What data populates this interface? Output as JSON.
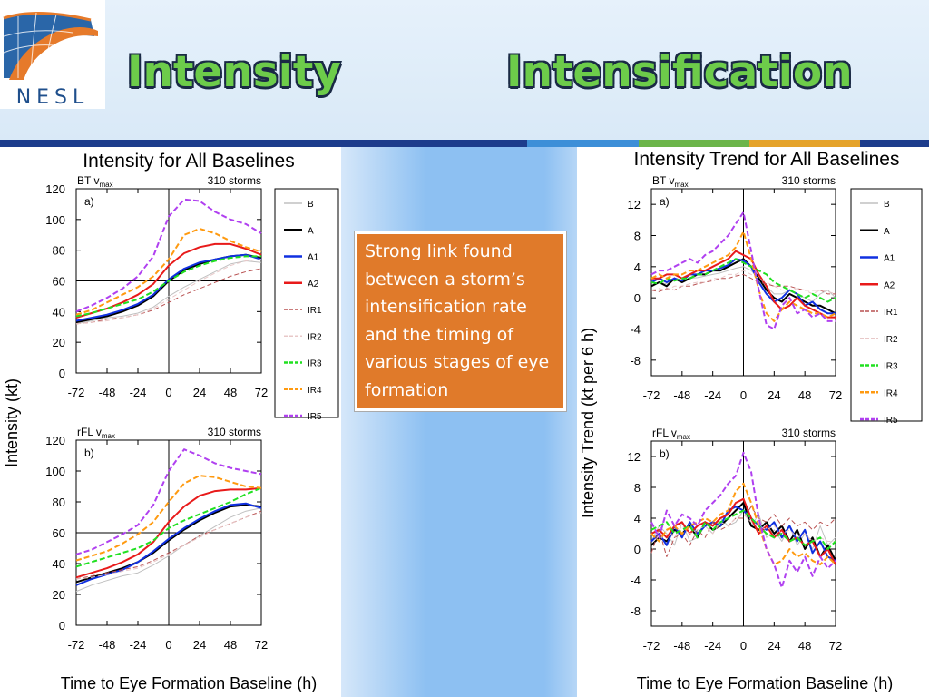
{
  "slide": {
    "logo_text": "NESL",
    "title_left": "Intensity",
    "title_right": "Intensification",
    "callout": "Strong link found between a storm’s intensification rate and the timing of various stages of eye formation",
    "colors": {
      "title": "#6dcc4a",
      "callout_bg": "#e07a2a",
      "bar": "#1d3c8c"
    }
  },
  "figures": {
    "left": {
      "title": "Intensity for All Baselines",
      "ylabel": "Intensity (kt)",
      "xlabel": "Time to Eye Formation Baseline (h)"
    },
    "right": {
      "title": "Intensity Trend for All Baselines",
      "ylabel": "Intensity Trend (kt per 6 h)",
      "xlabel": "Time to Eye Formation Baseline (h)"
    }
  },
  "legend": [
    {
      "name": "B",
      "color": "#c0c0c0",
      "dash": "",
      "width": 1
    },
    {
      "name": "A",
      "color": "#000000",
      "dash": "",
      "width": 2
    },
    {
      "name": "A1",
      "color": "#1030e0",
      "dash": "",
      "width": 2
    },
    {
      "name": "A2",
      "color": "#e81a1a",
      "dash": "",
      "width": 2
    },
    {
      "name": "IR1",
      "color": "#b85050",
      "dash": "5,3",
      "width": 1
    },
    {
      "name": "IR2",
      "color": "#e8c8c8",
      "dash": "5,3",
      "width": 1
    },
    {
      "name": "IR3",
      "color": "#20e020",
      "dash": "6,3",
      "width": 2
    },
    {
      "name": "IR4",
      "color": "#ff9a10",
      "dash": "6,3",
      "width": 2
    },
    {
      "name": "IR5",
      "color": "#b040f0",
      "dash": "6,3",
      "width": 2
    }
  ],
  "chart_data": [
    {
      "type": "line",
      "panel_label": "a)",
      "title": "Intensity for All Baselines",
      "subtitle_left": "BT v",
      "subtitle_sub": "max",
      "subtitle_right": "310 storms",
      "xlabel": "Time to Eye Formation Baseline (h)",
      "ylabel": "Intensity (kt)",
      "xlim": [
        -72,
        72
      ],
      "ylim": [
        0,
        120
      ],
      "xticks": [
        -72,
        -48,
        -24,
        0,
        24,
        48,
        72
      ],
      "yticks": [
        0,
        20,
        40,
        60,
        80,
        100,
        120
      ],
      "hline": 60,
      "vline": 0,
      "x": [
        -72,
        -60,
        -48,
        -36,
        -24,
        -12,
        0,
        12,
        24,
        36,
        48,
        60,
        72
      ],
      "series": [
        {
          "name": "B",
          "values": [
            32,
            34,
            36,
            37,
            39,
            43,
            50,
            56,
            61,
            66,
            71,
            73,
            72
          ]
        },
        {
          "name": "A",
          "values": [
            33,
            35,
            37,
            40,
            44,
            50,
            60,
            67,
            71,
            74,
            76,
            77,
            75
          ]
        },
        {
          "name": "A1",
          "values": [
            34,
            36,
            38,
            41,
            45,
            51,
            61,
            68,
            72,
            74,
            76,
            77,
            74
          ]
        },
        {
          "name": "A2",
          "values": [
            36,
            39,
            42,
            46,
            51,
            58,
            70,
            78,
            82,
            84,
            84,
            81,
            77
          ]
        },
        {
          "name": "IR1",
          "values": [
            32,
            33,
            35,
            36,
            38,
            41,
            46,
            51,
            55,
            59,
            63,
            66,
            68
          ]
        },
        {
          "name": "IR2",
          "values": [
            32,
            33,
            34,
            36,
            38,
            42,
            48,
            54,
            60,
            65,
            70,
            73,
            74
          ]
        },
        {
          "name": "IR3",
          "values": [
            37,
            39,
            42,
            45,
            48,
            53,
            60,
            66,
            70,
            73,
            75,
            76,
            76
          ]
        },
        {
          "name": "IR4",
          "values": [
            38,
            41,
            46,
            51,
            56,
            63,
            74,
            90,
            94,
            91,
            86,
            82,
            79
          ]
        },
        {
          "name": "IR5",
          "values": [
            40,
            44,
            49,
            55,
            63,
            76,
            102,
            113,
            112,
            105,
            100,
            97,
            91
          ]
        }
      ]
    },
    {
      "type": "line",
      "panel_label": "b)",
      "subtitle_left": "rFL v",
      "subtitle_sub": "max",
      "subtitle_right": "310 storms",
      "xlabel": "Time to Eye Formation Baseline (h)",
      "ylabel": "Intensity (kt)",
      "xlim": [
        -72,
        72
      ],
      "ylim": [
        0,
        120
      ],
      "xticks": [
        -72,
        -48,
        -24,
        0,
        24,
        48,
        72
      ],
      "yticks": [
        0,
        20,
        40,
        60,
        80,
        100,
        120
      ],
      "hline": 60,
      "vline": 0,
      "x": [
        -72,
        -60,
        -48,
        -36,
        -24,
        -12,
        0,
        12,
        24,
        36,
        48,
        60,
        72
      ],
      "series": [
        {
          "name": "B",
          "values": [
            22,
            26,
            29,
            32,
            34,
            39,
            45,
            52,
            58,
            64,
            70,
            74,
            76
          ]
        },
        {
          "name": "A",
          "values": [
            28,
            31,
            34,
            37,
            41,
            47,
            55,
            62,
            68,
            73,
            77,
            78,
            77
          ]
        },
        {
          "name": "A1",
          "values": [
            26,
            30,
            33,
            36,
            41,
            48,
            56,
            63,
            69,
            74,
            78,
            79,
            76
          ]
        },
        {
          "name": "A2",
          "values": [
            31,
            34,
            37,
            41,
            46,
            54,
            67,
            77,
            84,
            87,
            88,
            88,
            89
          ]
        },
        {
          "name": "IR1",
          "values": [
            30,
            32,
            34,
            36,
            38,
            42,
            47,
            52,
            58,
            62,
            66,
            70,
            74
          ]
        },
        {
          "name": "IR2",
          "values": [
            30,
            31,
            33,
            35,
            37,
            41,
            46,
            52,
            57,
            62,
            66,
            70,
            73
          ]
        },
        {
          "name": "IR3",
          "values": [
            38,
            41,
            44,
            47,
            50,
            55,
            63,
            68,
            72,
            76,
            80,
            85,
            89
          ]
        },
        {
          "name": "IR4",
          "values": [
            42,
            45,
            48,
            53,
            59,
            67,
            80,
            92,
            97,
            96,
            93,
            90,
            89
          ]
        },
        {
          "name": "IR5",
          "values": [
            46,
            49,
            54,
            59,
            65,
            78,
            100,
            114,
            110,
            105,
            102,
            100,
            98
          ]
        }
      ]
    },
    {
      "type": "line",
      "panel_label": "a)",
      "title": "Intensity Trend for All Baselines",
      "subtitle_left": "BT v",
      "subtitle_sub": "max",
      "subtitle_right": "310 storms",
      "xlabel": "Time to Eye Formation Baseline (h)",
      "ylabel": "Intensity Trend (kt per 6 h)",
      "xlim": [
        -72,
        72
      ],
      "ylim": [
        -10,
        14
      ],
      "xticks": [
        -72,
        -48,
        -24,
        0,
        24,
        48,
        72
      ],
      "yticks": [
        -8,
        -4,
        0,
        4,
        8,
        12
      ],
      "hline": null,
      "vline": 0,
      "x": [
        -72,
        -66,
        -60,
        -54,
        -48,
        -42,
        -36,
        -30,
        -24,
        -18,
        -12,
        -6,
        0,
        6,
        12,
        18,
        24,
        30,
        36,
        42,
        48,
        54,
        60,
        66,
        72
      ],
      "series": [
        {
          "name": "B",
          "values": [
            1.5,
            2.0,
            1.8,
            2.3,
            2.0,
            2.5,
            2.6,
            2.8,
            3.0,
            3.2,
            3.5,
            3.8,
            4.0,
            3.5,
            2.5,
            1.5,
            0.5,
            0.5,
            1.0,
            0.5,
            0.0,
            -0.5,
            0.5,
            1.0,
            0.0
          ]
        },
        {
          "name": "A",
          "values": [
            1.5,
            2.0,
            1.5,
            2.5,
            2.0,
            2.5,
            3.0,
            3.0,
            3.5,
            3.5,
            4.0,
            4.5,
            5.0,
            4.0,
            2.5,
            1.0,
            0.0,
            -0.5,
            0.5,
            0.0,
            -0.5,
            -1.0,
            -1.0,
            -1.5,
            -2.0
          ]
        },
        {
          "name": "A1",
          "values": [
            2.0,
            2.5,
            2.0,
            2.5,
            2.2,
            3.0,
            3.0,
            3.5,
            3.5,
            3.8,
            4.2,
            5.0,
            4.8,
            4.0,
            2.0,
            0.5,
            -0.5,
            0.0,
            1.0,
            0.5,
            -1.0,
            -0.5,
            -1.5,
            -2.0,
            -2.0
          ]
        },
        {
          "name": "A2",
          "values": [
            2.5,
            2.5,
            3.0,
            3.0,
            2.5,
            3.0,
            3.5,
            3.5,
            4.0,
            4.5,
            5.0,
            6.0,
            5.5,
            5.0,
            3.0,
            1.5,
            -0.5,
            -1.5,
            -1.0,
            0.0,
            -1.0,
            -1.5,
            -2.0,
            -2.5,
            -2.5
          ]
        },
        {
          "name": "IR1",
          "values": [
            1.0,
            0.8,
            1.2,
            1.0,
            1.5,
            1.5,
            1.8,
            2.0,
            2.2,
            2.5,
            2.5,
            2.8,
            3.0,
            2.5,
            2.0,
            1.8,
            1.5,
            1.5,
            1.5,
            1.2,
            1.0,
            1.0,
            1.0,
            0.5,
            0.5
          ]
        },
        {
          "name": "IR2",
          "values": [
            1.0,
            1.2,
            1.0,
            1.5,
            1.5,
            1.8,
            2.0,
            2.0,
            2.5,
            2.5,
            3.0,
            3.0,
            3.5,
            3.0,
            2.5,
            2.0,
            1.5,
            1.0,
            1.0,
            1.2,
            1.0,
            0.5,
            1.0,
            0.8,
            0.5
          ]
        },
        {
          "name": "IR3",
          "values": [
            2.0,
            1.8,
            2.5,
            2.2,
            2.5,
            2.5,
            3.0,
            3.0,
            3.5,
            4.0,
            4.5,
            5.0,
            4.5,
            4.0,
            3.5,
            3.0,
            2.0,
            1.5,
            1.0,
            0.5,
            0.0,
            0.5,
            0.0,
            -0.5,
            0.0
          ]
        },
        {
          "name": "IR4",
          "values": [
            2.5,
            3.0,
            2.5,
            3.0,
            3.0,
            3.5,
            3.5,
            4.0,
            4.5,
            5.0,
            5.5,
            6.5,
            8.5,
            5.0,
            1.0,
            -2.0,
            -3.0,
            -1.5,
            -0.5,
            -1.0,
            -1.5,
            -2.0,
            -2.0,
            -2.5,
            -2.0
          ]
        },
        {
          "name": "IR5",
          "values": [
            3.0,
            3.5,
            3.5,
            4.0,
            4.5,
            5.0,
            4.5,
            5.5,
            6.0,
            7.0,
            8.0,
            9.5,
            11.0,
            6.0,
            1.0,
            -3.5,
            -4.0,
            -1.0,
            0.0,
            -2.0,
            -1.5,
            -2.5,
            -2.0,
            -3.0,
            -3.0
          ]
        }
      ]
    },
    {
      "type": "line",
      "panel_label": "b)",
      "subtitle_left": "rFL v",
      "subtitle_sub": "max",
      "subtitle_right": "310 storms",
      "xlabel": "Time to Eye Formation Baseline (h)",
      "ylabel": "Intensity Trend (kt per 6 h)",
      "xlim": [
        -72,
        72
      ],
      "ylim": [
        -10,
        14
      ],
      "xticks": [
        -72,
        -48,
        -24,
        0,
        24,
        48,
        72
      ],
      "yticks": [
        -8,
        -4,
        0,
        4,
        8,
        12
      ],
      "hline": null,
      "vline": 0,
      "x": [
        -72,
        -66,
        -60,
        -54,
        -48,
        -42,
        -36,
        -30,
        -24,
        -18,
        -12,
        -6,
        0,
        6,
        12,
        18,
        24,
        30,
        36,
        42,
        48,
        54,
        60,
        66,
        72
      ],
      "series": [
        {
          "name": "B",
          "values": [
            1.0,
            3.0,
            2.0,
            0.5,
            3.5,
            1.0,
            1.5,
            3.0,
            2.0,
            4.0,
            3.0,
            3.5,
            5.0,
            3.0,
            4.5,
            1.5,
            2.5,
            1.0,
            3.0,
            0.5,
            2.0,
            0.0,
            3.0,
            0.5,
            1.5
          ]
        },
        {
          "name": "A",
          "values": [
            0.5,
            1.5,
            1.0,
            2.5,
            2.0,
            3.0,
            1.5,
            3.5,
            2.5,
            3.0,
            4.0,
            5.0,
            6.0,
            3.0,
            2.5,
            3.5,
            2.0,
            3.0,
            1.0,
            2.5,
            0.0,
            1.5,
            -1.0,
            0.5,
            -1.5
          ]
        },
        {
          "name": "A1",
          "values": [
            1.0,
            2.0,
            0.5,
            3.0,
            1.5,
            3.5,
            2.0,
            3.0,
            3.5,
            3.0,
            5.0,
            5.5,
            5.0,
            4.0,
            3.0,
            2.5,
            3.5,
            1.5,
            3.0,
            1.0,
            2.5,
            -0.5,
            1.0,
            -1.0,
            -1.5
          ]
        },
        {
          "name": "A2",
          "values": [
            2.0,
            2.5,
            1.5,
            3.0,
            3.5,
            2.0,
            3.0,
            3.5,
            3.0,
            4.0,
            4.5,
            6.0,
            6.5,
            4.0,
            2.0,
            3.0,
            1.5,
            2.5,
            1.0,
            1.5,
            0.5,
            1.0,
            -1.0,
            0.0,
            -2.0
          ]
        },
        {
          "name": "IR1",
          "values": [
            -0.5,
            2.5,
            -1.0,
            1.5,
            2.0,
            0.5,
            2.5,
            1.5,
            3.5,
            2.5,
            3.0,
            4.0,
            4.0,
            5.5,
            4.0,
            3.5,
            4.5,
            3.0,
            4.0,
            3.0,
            3.5,
            2.5,
            3.5,
            3.0,
            4.0
          ]
        },
        {
          "name": "IR2",
          "values": [
            2.0,
            1.0,
            2.5,
            1.5,
            3.0,
            2.0,
            2.5,
            3.0,
            2.0,
            3.5,
            3.0,
            4.0,
            4.5,
            3.5,
            3.0,
            2.5,
            3.0,
            2.0,
            2.5,
            1.5,
            2.0,
            1.0,
            1.5,
            1.0,
            1.0
          ]
        },
        {
          "name": "IR3",
          "values": [
            2.5,
            3.0,
            3.5,
            2.0,
            2.5,
            3.0,
            1.5,
            3.5,
            2.5,
            3.5,
            4.0,
            4.5,
            5.0,
            4.0,
            3.0,
            2.0,
            1.5,
            2.0,
            1.0,
            1.5,
            0.5,
            1.0,
            1.5,
            0.0,
            1.0
          ]
        },
        {
          "name": "IR4",
          "values": [
            2.0,
            1.0,
            2.5,
            3.0,
            2.0,
            3.0,
            3.5,
            4.0,
            3.5,
            4.5,
            5.0,
            7.5,
            8.5,
            6.0,
            3.0,
            0.0,
            -2.0,
            -1.5,
            0.0,
            -1.0,
            -0.5,
            -1.5,
            -2.0,
            -1.0,
            -2.0
          ]
        },
        {
          "name": "IR5",
          "values": [
            3.5,
            1.5,
            5.0,
            3.0,
            4.5,
            4.0,
            3.0,
            5.0,
            6.0,
            7.0,
            8.5,
            9.5,
            12.5,
            10.0,
            4.0,
            0.0,
            -2.0,
            -5.0,
            -1.5,
            -3.0,
            -1.0,
            -3.5,
            -1.0,
            -2.5,
            -1.5
          ]
        }
      ]
    }
  ]
}
